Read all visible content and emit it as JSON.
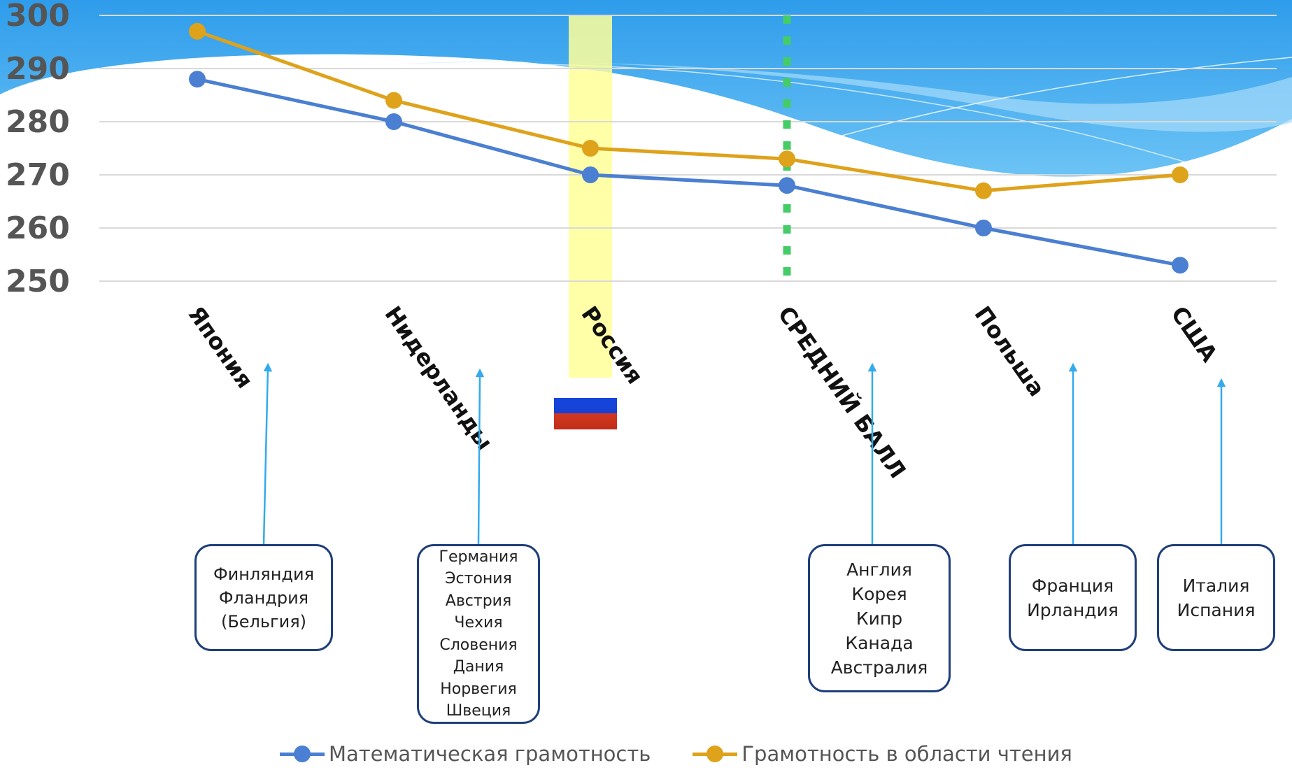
{
  "chart_data": {
    "type": "line",
    "categories": [
      "Япония",
      "Нидерланды",
      "Россия",
      "СРЕДНИЙ БАЛЛ",
      "Польша",
      "США"
    ],
    "series": [
      {
        "name": "Математическая грамотность",
        "color": "#4a7fd1",
        "values": [
          288,
          280,
          270,
          268,
          260,
          253
        ]
      },
      {
        "name": "Грамотность в области чтения",
        "color": "#dea21b",
        "values": [
          297,
          284,
          275,
          273,
          267,
          270
        ]
      }
    ],
    "y_ticks": [
      "300",
      "290",
      "280",
      "270",
      "260",
      "250"
    ],
    "ylim": [
      250,
      300
    ],
    "grid": true,
    "legend": "bottom",
    "highlight_category": "Россия",
    "average_category": "СРЕДНИЙ БАЛЛ"
  },
  "annotations": [
    {
      "category": "Япония",
      "countries": [
        "Финляндия",
        "Фландрия",
        "(Бельгия)"
      ]
    },
    {
      "category": "Нидерланды",
      "countries": [
        "Германия",
        "Эстония",
        "Австрия",
        "Чехия",
        "Словения",
        "Дания",
        "Норвегия",
        "Швеция"
      ]
    },
    {
      "category": "СРЕДНИЙ БАЛЛ",
      "countries": [
        "Англия",
        "Корея",
        "Кипр",
        "Канада",
        "Австралия"
      ]
    },
    {
      "category": "Польша",
      "countries": [
        "Франция",
        "Ирландия"
      ]
    },
    {
      "category": "США",
      "countries": [
        "Италия",
        "Испания"
      ]
    }
  ],
  "colors": {
    "banner_blue": "#3aa6ee",
    "highlight_yellow": "#ffff99",
    "average_line_green": "#44cc66",
    "arrow_blue": "#33aaee",
    "box_border": "#1f3f7a"
  }
}
